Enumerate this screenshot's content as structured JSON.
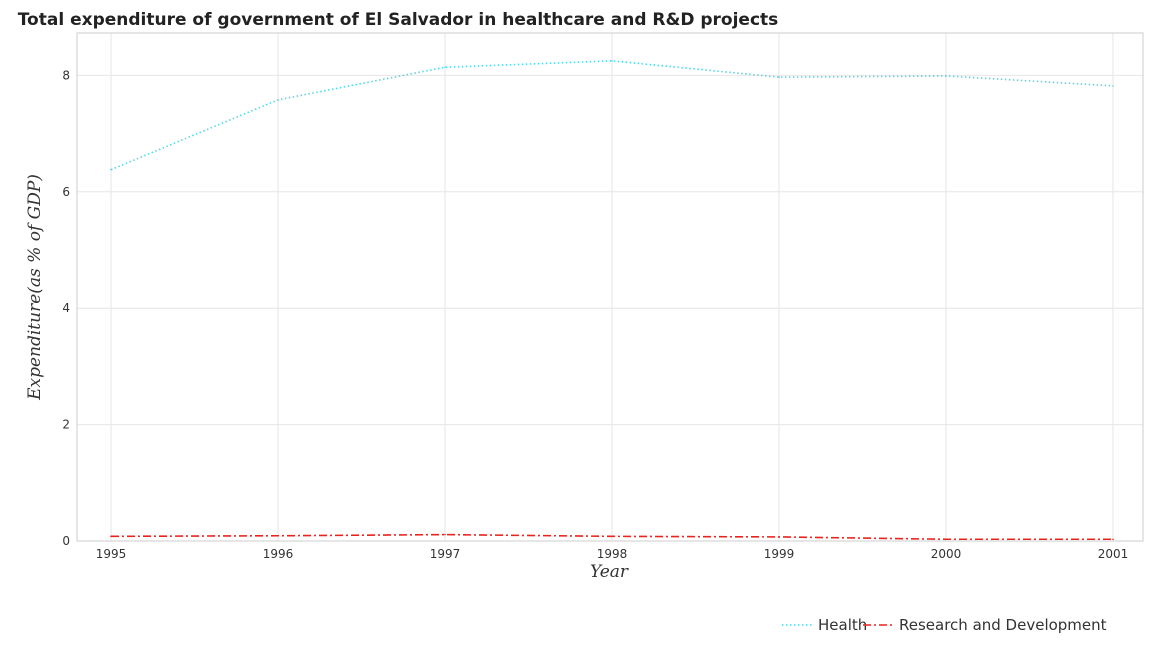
{
  "chart_data": {
    "type": "line",
    "title": "Total expenditure of government of El Salvador in healthcare and R&D projects",
    "xlabel": "Year",
    "ylabel": "Expenditure(as % of GDP)",
    "categories": [
      "1995",
      "1996",
      "1997",
      "1998",
      "1999",
      "2000",
      "2001"
    ],
    "yticks": [
      "0",
      "2",
      "4",
      "6",
      "8"
    ],
    "ylim": [
      0,
      8.6
    ],
    "grid": true,
    "legend_position": "bottom-right",
    "series": [
      {
        "name": "Health",
        "color": "#4fd8e8",
        "dash": "dotted",
        "values": [
          6.38,
          7.58,
          8.14,
          8.25,
          7.97,
          7.99,
          7.82
        ]
      },
      {
        "name": "Research and Development",
        "color": "#e8241f",
        "dash": "dashdot",
        "values": [
          0.08,
          0.09,
          0.11,
          0.08,
          0.07,
          0.03,
          0.03
        ]
      }
    ]
  }
}
